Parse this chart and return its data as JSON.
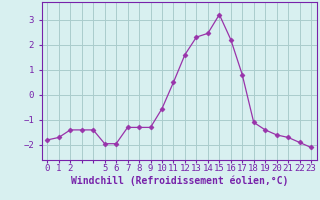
{
  "x": [
    0,
    1,
    2,
    3,
    4,
    5,
    6,
    7,
    8,
    9,
    10,
    11,
    12,
    13,
    14,
    15,
    16,
    17,
    18,
    19,
    20,
    21,
    22,
    23
  ],
  "y": [
    -1.8,
    -1.7,
    -1.4,
    -1.4,
    -1.4,
    -1.95,
    -1.95,
    -1.3,
    -1.3,
    -1.3,
    -0.55,
    0.5,
    1.6,
    2.3,
    2.45,
    3.2,
    2.2,
    0.8,
    -1.1,
    -1.4,
    -1.6,
    -1.7,
    -1.9,
    -2.1
  ],
  "line_color": "#9933aa",
  "marker": "D",
  "marker_size": 2.5,
  "bg_color": "#d8f0f0",
  "grid_color": "#aacccc",
  "axis_color": "#7722aa",
  "xlabel": "Windchill (Refroidissement éolien,°C)",
  "xlabel_fontsize": 7,
  "tick_fontsize": 6.5,
  "yticks": [
    -2,
    -1,
    0,
    1,
    2,
    3
  ],
  "ylim": [
    -2.6,
    3.7
  ],
  "xlim": [
    -0.5,
    23.5
  ],
  "xtick_labels": [
    "0",
    "1",
    "2",
    "",
    "",
    "5",
    "6",
    "7",
    "8",
    "9",
    "10",
    "11",
    "12",
    "13",
    "14",
    "15",
    "16",
    "17",
    "18",
    "19",
    "20",
    "21",
    "22",
    "23"
  ]
}
